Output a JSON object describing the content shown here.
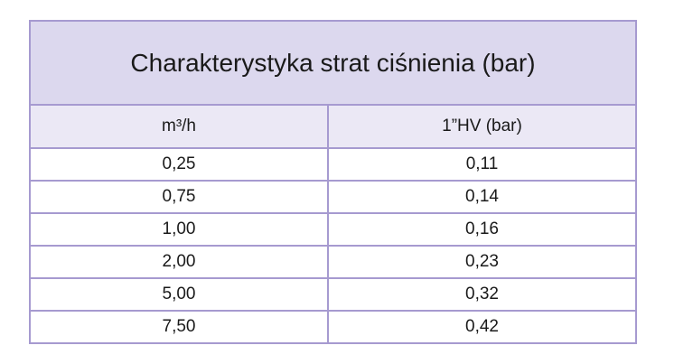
{
  "table": {
    "title": "Charakterystyka strat ciśnienia (bar)",
    "header": [
      "m³/h",
      "1”HV (bar)"
    ],
    "rows": [
      [
        "0,25",
        "0,11"
      ],
      [
        "0,75",
        "0,14"
      ],
      [
        "1,00",
        "0,16"
      ],
      [
        "2,00",
        "0,23"
      ],
      [
        "5,00",
        "0,32"
      ],
      [
        "7,50",
        "0,42"
      ]
    ]
  }
}
